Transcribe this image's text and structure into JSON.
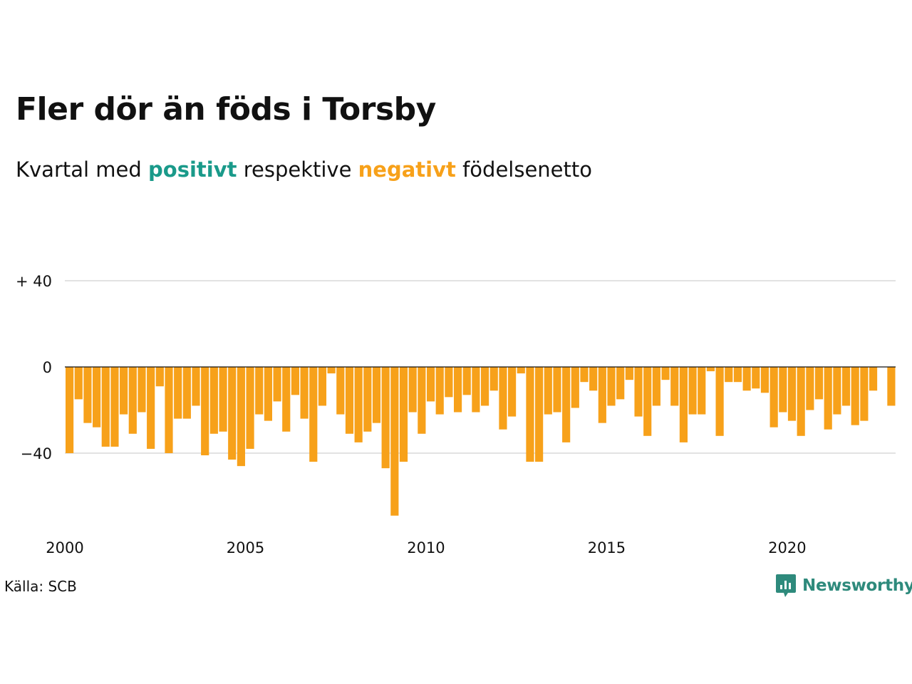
{
  "title": "Fler dör än föds i Torsby",
  "subtitle": {
    "prefix": "Kvartal med",
    "positive_word": "positivt",
    "middle": "respektive",
    "negative_word": "negativt",
    "suffix": "födelsenetto"
  },
  "source": "Källa: SCB",
  "brand": {
    "name": "Newsworthy",
    "icon": "newsworthy-logo-icon"
  },
  "colors": {
    "positive": "#1a9a8a",
    "negative": "#f7a11a",
    "grid": "#e2e2e2",
    "brand": "#2e8a7c"
  },
  "chart_data": {
    "type": "bar",
    "period": "quarterly",
    "x_start": "2000 Q1",
    "y_ticks": [
      {
        "value": 40,
        "label": "+ 40"
      },
      {
        "value": 0,
        "label": "0"
      },
      {
        "value": -40,
        "label": "−40"
      }
    ],
    "x_ticks": [
      "2000",
      "2005",
      "2010",
      "2015",
      "2020"
    ],
    "ylim": [
      -75,
      45
    ],
    "grid": true,
    "values": [
      -40,
      -15,
      -26,
      -28,
      -37,
      -37,
      -22,
      -31,
      -21,
      -38,
      -9,
      -40,
      -24,
      -24,
      -18,
      -41,
      -31,
      -30,
      -43,
      -46,
      -38,
      -22,
      -25,
      -16,
      -30,
      -13,
      -24,
      -44,
      -18,
      -3,
      -22,
      -31,
      -35,
      -30,
      -26,
      -47,
      -69,
      -44,
      -21,
      -31,
      -16,
      -22,
      -14,
      -21,
      -13,
      -21,
      -18,
      -11,
      -29,
      -23,
      -3,
      -44,
      -44,
      -22,
      -21,
      -35,
      -19,
      -7,
      -11,
      -26,
      -18,
      -15,
      -6,
      -23,
      -32,
      -18,
      -6,
      -18,
      -35,
      -22,
      -22,
      -2,
      -32,
      -7,
      -7,
      -11,
      -10,
      -12,
      -28,
      -21,
      -25,
      -32,
      -20,
      -15,
      -29,
      -22,
      -18,
      -27,
      -25,
      -11,
      0,
      -18
    ]
  }
}
